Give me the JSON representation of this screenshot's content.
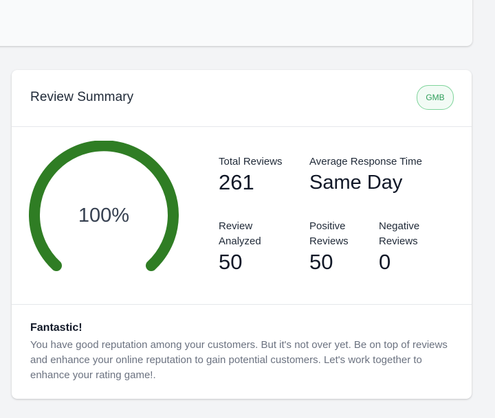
{
  "colors": {
    "gauge": "#2f7d24",
    "badge_border": "#7fd49b",
    "badge_text": "#2f9e5a"
  },
  "review_summary": {
    "title": "Review Summary",
    "badge": "GMB",
    "gauge": {
      "percent_label": "100%",
      "value_fraction": 1.0
    },
    "stats": {
      "total_reviews": {
        "label": "Total Reviews",
        "value": "261"
      },
      "avg_response_time": {
        "label": "Average Response Time",
        "value": "Same Day"
      },
      "review_analyzed": {
        "label": "Review Analyzed",
        "value": "50"
      },
      "positive_reviews": {
        "label": "Positive Reviews",
        "value": "50"
      },
      "negative_reviews": {
        "label": "Negative Reviews",
        "value": "0"
      }
    },
    "footer": {
      "title": "Fantastic!",
      "text": "You have good reputation among your customers. But it's not over yet. Be on top of reviews and enhance your online reputation to gain potential customers. Let's work together to enhance your rating game!."
    }
  }
}
